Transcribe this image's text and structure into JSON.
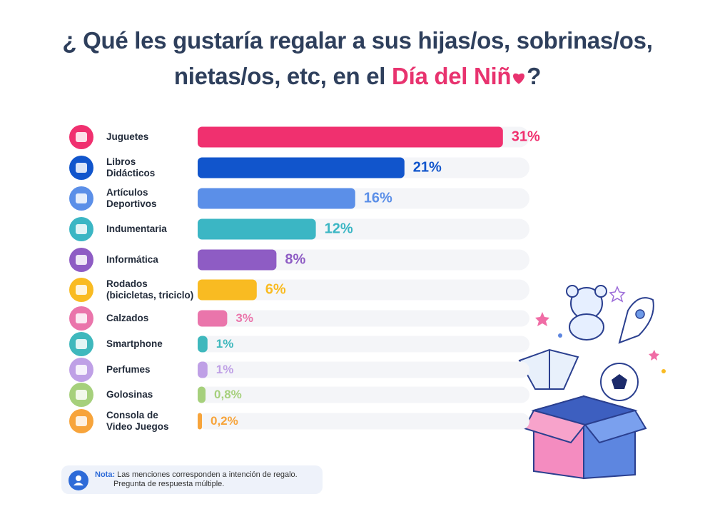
{
  "chart_data": {
    "type": "bar",
    "orientation": "horizontal",
    "title_line1": "¿ Qué les gustaría regalar a sus hijas/os, sobrinas/os,",
    "title_line2": "nietas/os, etc, en el",
    "title_highlight": "Día del Niñ",
    "title_end": "?",
    "categories": [
      "Juguetes",
      "Libros\nDidácticos",
      "Artículos\nDeportivos",
      "Indumentaria",
      "Informática",
      "Rodados\n(bicicletas, triciclo)",
      "Calzados",
      "Smartphone",
      "Perfumes",
      "Golosinas",
      "Consola de\nVideo Juegos"
    ],
    "values": [
      31,
      21,
      16,
      12,
      8,
      6,
      3,
      1,
      1,
      0.8,
      0.2
    ],
    "value_labels": [
      "31%",
      "21%",
      "16%",
      "12%",
      "8%",
      "6%",
      "3%",
      "1%",
      "1%",
      "0,8%",
      "0,2%"
    ],
    "colors": [
      "#f0306f",
      "#1155cc",
      "#5b8fe8",
      "#3bb6c4",
      "#8e5cc4",
      "#f9bb22",
      "#ea75ab",
      "#3fb8bd",
      "#bfa0e6",
      "#a6d07c",
      "#f7a43b"
    ],
    "note_label": "Nota:",
    "note_line1": "Las menciones corresponden a intención de regalo.",
    "note_line2": "Pregunta de respuesta múltiple."
  }
}
